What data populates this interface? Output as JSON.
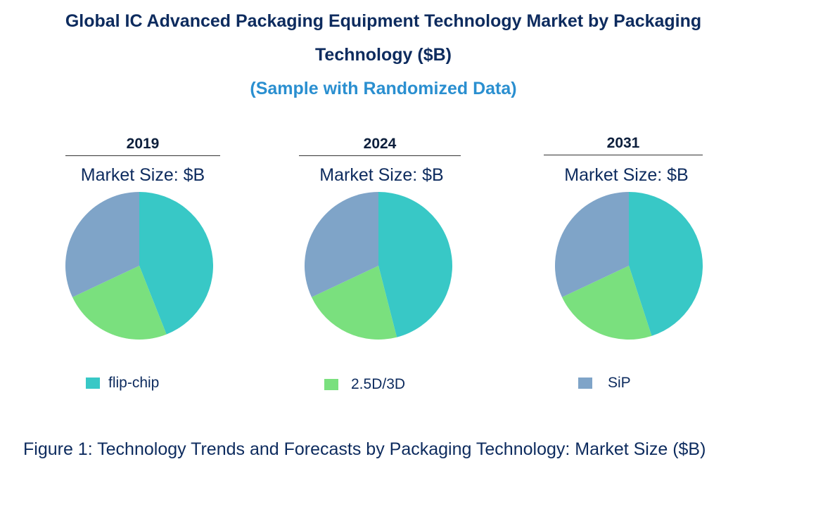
{
  "title_line1": "Global IC Advanced Packaging Equipment Technology Market by Packaging",
  "title_line2": "Technology ($B)",
  "subtitle": "(Sample with Randomized Data)",
  "caption": "Figure 1: Technology Trends and Forecasts by Packaging Technology: Market Size ($B)",
  "colors": {
    "flip-chip": "#38c8c6",
    "2.5D/3D": "#7ae07e",
    "SiP": "#7fa4c8"
  },
  "chart_data": [
    {
      "type": "pie",
      "title": "2019",
      "subtitle": "Market Size: $B",
      "categories": [
        "flip-chip",
        "2.5D/3D",
        "SiP"
      ],
      "values": [
        44,
        24,
        32
      ]
    },
    {
      "type": "pie",
      "title": "2024",
      "subtitle": "Market Size: $B",
      "categories": [
        "flip-chip",
        "2.5D/3D",
        "SiP"
      ],
      "values": [
        46,
        22,
        32
      ]
    },
    {
      "type": "pie",
      "title": "2031",
      "subtitle": "Market Size: $B",
      "categories": [
        "flip-chip",
        "2.5D/3D",
        "SiP"
      ],
      "values": [
        45,
        23,
        32
      ]
    }
  ],
  "legend": [
    {
      "label": "flip-chip"
    },
    {
      "label": "2.5D/3D"
    },
    {
      "label": "SiP"
    }
  ]
}
